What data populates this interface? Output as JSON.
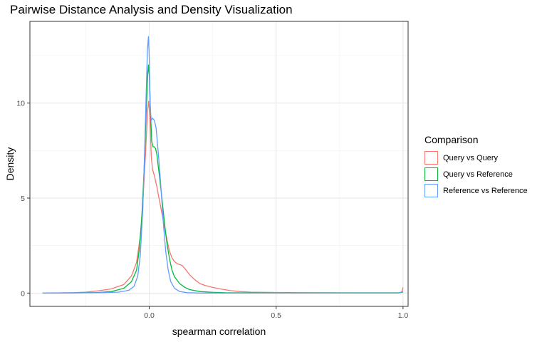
{
  "chart_data": {
    "type": "line",
    "title": "Pairwise Distance Analysis and Density Visualization",
    "xlabel": "spearman correlation",
    "ylabel": "Density",
    "xlim": [
      -0.47,
      1.02
    ],
    "ylim": [
      -0.7,
      14.3
    ],
    "x_ticks": [
      0.0,
      0.5,
      1.0
    ],
    "x_tick_labels": [
      "0.0",
      "0.5",
      "1.0"
    ],
    "y_ticks": [
      0,
      5,
      10
    ],
    "y_tick_labels": [
      "0",
      "5",
      "10"
    ],
    "grid": true,
    "legend": {
      "title": "Comparison",
      "position": "right"
    },
    "series": [
      {
        "name": "Query vs Query",
        "color": "#F8766D",
        "points": [
          [
            -0.42,
            0.0
          ],
          [
            -0.3,
            0.02
          ],
          [
            -0.25,
            0.05
          ],
          [
            -0.2,
            0.12
          ],
          [
            -0.15,
            0.22
          ],
          [
            -0.1,
            0.45
          ],
          [
            -0.07,
            0.9
          ],
          [
            -0.05,
            1.6
          ],
          [
            -0.035,
            3.0
          ],
          [
            -0.025,
            4.8
          ],
          [
            -0.015,
            7.2
          ],
          [
            -0.007,
            9.5
          ],
          [
            -0.002,
            10.1
          ],
          [
            0.003,
            9.3
          ],
          [
            0.008,
            7.2
          ],
          [
            0.013,
            6.5
          ],
          [
            0.02,
            6.2
          ],
          [
            0.03,
            5.6
          ],
          [
            0.04,
            4.9
          ],
          [
            0.05,
            4.2
          ],
          [
            0.06,
            3.5
          ],
          [
            0.07,
            2.8
          ],
          [
            0.08,
            2.2
          ],
          [
            0.09,
            1.85
          ],
          [
            0.1,
            1.65
          ],
          [
            0.11,
            1.55
          ],
          [
            0.12,
            1.5
          ],
          [
            0.13,
            1.45
          ],
          [
            0.14,
            1.3
          ],
          [
            0.16,
            0.95
          ],
          [
            0.18,
            0.7
          ],
          [
            0.2,
            0.5
          ],
          [
            0.22,
            0.4
          ],
          [
            0.25,
            0.3
          ],
          [
            0.28,
            0.22
          ],
          [
            0.32,
            0.13
          ],
          [
            0.36,
            0.08
          ],
          [
            0.4,
            0.05
          ],
          [
            0.5,
            0.03
          ],
          [
            0.6,
            0.02
          ],
          [
            0.8,
            0.01
          ],
          [
            0.98,
            0.01
          ],
          [
            0.995,
            0.05
          ],
          [
            1.0,
            0.3
          ]
        ]
      },
      {
        "name": "Query vs Reference",
        "color": "#00BA38",
        "points": [
          [
            -0.42,
            0.0
          ],
          [
            -0.3,
            0.01
          ],
          [
            -0.2,
            0.03
          ],
          [
            -0.15,
            0.08
          ],
          [
            -0.1,
            0.25
          ],
          [
            -0.07,
            0.6
          ],
          [
            -0.05,
            1.2
          ],
          [
            -0.04,
            2.2
          ],
          [
            -0.03,
            3.8
          ],
          [
            -0.02,
            6.5
          ],
          [
            -0.012,
            9.5
          ],
          [
            -0.006,
            11.5
          ],
          [
            -0.003,
            12.0
          ],
          [
            0.001,
            11.3
          ],
          [
            0.005,
            9.5
          ],
          [
            0.01,
            8.0
          ],
          [
            0.015,
            7.7
          ],
          [
            0.02,
            7.7
          ],
          [
            0.025,
            7.6
          ],
          [
            0.03,
            7.3
          ],
          [
            0.04,
            6.2
          ],
          [
            0.05,
            5.0
          ],
          [
            0.06,
            3.7
          ],
          [
            0.07,
            2.6
          ],
          [
            0.08,
            1.8
          ],
          [
            0.09,
            1.2
          ],
          [
            0.1,
            0.85
          ],
          [
            0.12,
            0.5
          ],
          [
            0.14,
            0.3
          ],
          [
            0.16,
            0.18
          ],
          [
            0.2,
            0.08
          ],
          [
            0.25,
            0.04
          ],
          [
            0.3,
            0.02
          ],
          [
            0.5,
            0.01
          ],
          [
            0.98,
            0.01
          ],
          [
            1.0,
            0.05
          ]
        ]
      },
      {
        "name": "Reference vs Reference",
        "color": "#619CFF",
        "points": [
          [
            -0.42,
            0.0
          ],
          [
            -0.3,
            0.01
          ],
          [
            -0.2,
            0.02
          ],
          [
            -0.12,
            0.05
          ],
          [
            -0.08,
            0.15
          ],
          [
            -0.06,
            0.35
          ],
          [
            -0.045,
            0.9
          ],
          [
            -0.035,
            2.0
          ],
          [
            -0.025,
            4.5
          ],
          [
            -0.018,
            7.5
          ],
          [
            -0.012,
            10.5
          ],
          [
            -0.007,
            12.8
          ],
          [
            -0.003,
            13.5
          ],
          [
            0.0,
            12.5
          ],
          [
            0.004,
            9.8
          ],
          [
            0.008,
            9.1
          ],
          [
            0.013,
            9.2
          ],
          [
            0.02,
            9.1
          ],
          [
            0.027,
            8.7
          ],
          [
            0.035,
            7.5
          ],
          [
            0.045,
            5.8
          ],
          [
            0.055,
            3.8
          ],
          [
            0.065,
            2.2
          ],
          [
            0.075,
            1.2
          ],
          [
            0.085,
            0.6
          ],
          [
            0.1,
            0.25
          ],
          [
            0.12,
            0.08
          ],
          [
            0.15,
            0.02
          ],
          [
            0.2,
            0.0
          ],
          [
            0.98,
            0.0
          ],
          [
            1.0,
            0.08
          ]
        ]
      }
    ]
  }
}
